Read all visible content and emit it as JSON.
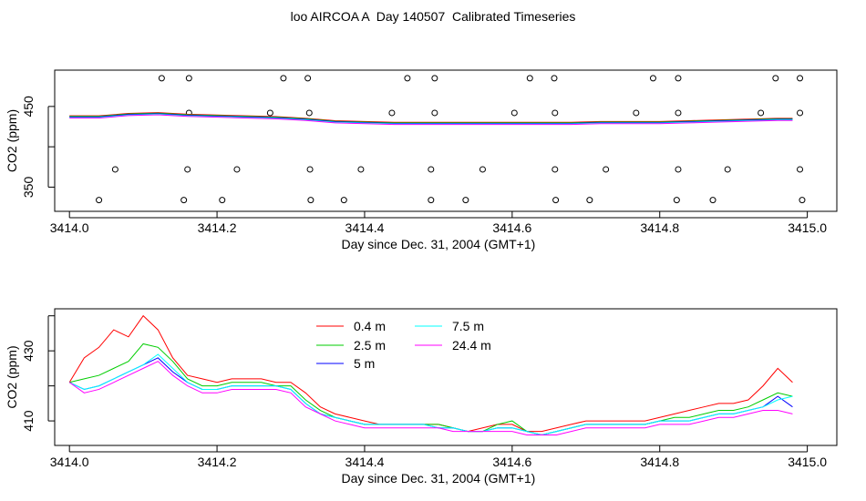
{
  "title": "loo AIRCOA A  Day 140507  Calibrated Timeseries",
  "chart_data": [
    {
      "type": "scatter",
      "xlabel": "Day since Dec. 31, 2004 (GMT+1)",
      "ylabel": "CO2 (ppm)",
      "xlim": [
        3413.98,
        3415.04
      ],
      "ylim": [
        320,
        495
      ],
      "xticks": [
        3414.0,
        3414.2,
        3414.4,
        3414.6,
        3414.8,
        3415.0
      ],
      "xtick_labels": [
        "3414.0",
        "3414.2",
        "3414.4",
        "3414.6",
        "3414.8",
        "3415.0"
      ],
      "yticks": [
        350,
        450
      ],
      "ytick_labels": [
        "350",
        "450"
      ],
      "point_series": [
        {
          "y": 485,
          "x": [
            3414.125,
            3414.162,
            3414.29,
            3414.323,
            3414.458,
            3414.495,
            3414.624,
            3414.657,
            3414.791,
            3414.825,
            3414.957,
            3414.99
          ]
        },
        {
          "y": 442,
          "x": [
            3414.162,
            3414.272,
            3414.325,
            3414.437,
            3414.495,
            3414.603,
            3414.658,
            3414.768,
            3414.825,
            3414.937,
            3414.99
          ]
        },
        {
          "y": 372,
          "x": [
            3414.062,
            3414.16,
            3414.227,
            3414.326,
            3414.395,
            3414.49,
            3414.56,
            3414.658,
            3414.727,
            3414.825,
            3414.892,
            3414.99
          ]
        },
        {
          "y": 334,
          "x": [
            3414.04,
            3414.155,
            3414.207,
            3414.327,
            3414.372,
            3414.49,
            3414.537,
            3414.659,
            3414.705,
            3414.823,
            3414.872,
            3414.993
          ]
        }
      ],
      "series_colors": [
        "#ff0000",
        "#00cd00",
        "#0000ff",
        "#00ffff",
        "#ff00ff"
      ],
      "line_x": [
        3414.0,
        3414.04,
        3414.08,
        3414.12,
        3414.16,
        3414.2,
        3414.24,
        3414.28,
        3414.32,
        3414.36,
        3414.4,
        3414.44,
        3414.48,
        3414.52,
        3414.56,
        3414.6,
        3414.64,
        3414.68,
        3414.72,
        3414.76,
        3414.8,
        3414.84,
        3414.88,
        3414.92,
        3414.96,
        3414.98
      ],
      "line_y": [
        437,
        437,
        440,
        441,
        439,
        438,
        437,
        436,
        434,
        431,
        430,
        429,
        429,
        429,
        429,
        429,
        429,
        429,
        430,
        430,
        430,
        431,
        432,
        433,
        434,
        434
      ]
    },
    {
      "type": "line",
      "xlabel": "Day since Dec. 31, 2004 (GMT+1)",
      "ylabel": "CO2 (ppm)",
      "xlim": [
        3413.98,
        3415.04
      ],
      "ylim": [
        403,
        442
      ],
      "xticks": [
        3414.0,
        3414.2,
        3414.4,
        3414.6,
        3414.8,
        3415.0
      ],
      "xtick_labels": [
        "3414.0",
        "3414.2",
        "3414.4",
        "3414.6",
        "3414.8",
        "3415.0"
      ],
      "yticks": [
        410,
        430
      ],
      "ytick_labels": [
        "410",
        "430"
      ],
      "x": [
        3414.0,
        3414.02,
        3414.04,
        3414.06,
        3414.08,
        3414.1,
        3414.12,
        3414.14,
        3414.16,
        3414.18,
        3414.2,
        3414.22,
        3414.24,
        3414.26,
        3414.28,
        3414.3,
        3414.32,
        3414.34,
        3414.36,
        3414.38,
        3414.4,
        3414.42,
        3414.44,
        3414.46,
        3414.48,
        3414.5,
        3414.52,
        3414.54,
        3414.56,
        3414.58,
        3414.6,
        3414.62,
        3414.64,
        3414.66,
        3414.68,
        3414.7,
        3414.72,
        3414.74,
        3414.76,
        3414.78,
        3414.8,
        3414.82,
        3414.84,
        3414.86,
        3414.88,
        3414.9,
        3414.92,
        3414.94,
        3414.96,
        3414.98
      ],
      "series": [
        {
          "name": "0.4 m",
          "values": [
            421,
            428,
            431,
            436,
            434,
            440,
            436,
            428,
            423,
            422,
            421,
            422,
            422,
            422,
            421,
            421,
            418,
            414,
            412,
            411,
            410,
            409,
            409,
            409,
            409,
            409,
            408,
            407,
            408,
            409,
            409,
            407,
            407,
            408,
            409,
            410,
            410,
            410,
            410,
            410,
            411,
            412,
            413,
            414,
            415,
            415,
            416,
            420,
            425,
            421
          ]
        },
        {
          "name": "2.5 m",
          "values": [
            421,
            422,
            423,
            425,
            427,
            432,
            431,
            427,
            422,
            420,
            420,
            421,
            421,
            421,
            420,
            420,
            416,
            413,
            411,
            410,
            409,
            409,
            409,
            409,
            409,
            409,
            408,
            407,
            407,
            409,
            410,
            407,
            406,
            407,
            408,
            409,
            409,
            409,
            409,
            409,
            410,
            411,
            411,
            412,
            413,
            413,
            414,
            416,
            418,
            417
          ]
        },
        {
          "name": "5 m",
          "values": [
            421,
            419,
            420,
            422,
            424,
            426,
            428,
            424,
            421,
            419,
            419,
            420,
            420,
            420,
            420,
            419,
            415,
            412,
            411,
            410,
            409,
            409,
            409,
            409,
            409,
            408,
            408,
            407,
            407,
            408,
            408,
            407,
            406,
            407,
            408,
            409,
            409,
            409,
            409,
            409,
            410,
            410,
            410,
            411,
            412,
            412,
            413,
            414,
            417,
            414
          ]
        },
        {
          "name": "7.5 m",
          "values": [
            421,
            419,
            420,
            422,
            424,
            426,
            429,
            425,
            421,
            419,
            419,
            420,
            420,
            420,
            420,
            419,
            415,
            412,
            411,
            410,
            409,
            409,
            409,
            409,
            409,
            408,
            408,
            407,
            407,
            408,
            408,
            407,
            406,
            407,
            408,
            409,
            409,
            409,
            409,
            409,
            410,
            410,
            410,
            411,
            412,
            412,
            413,
            414,
            416,
            417
          ]
        },
        {
          "name": "24.4 m",
          "values": [
            421,
            418,
            419,
            421,
            423,
            425,
            427,
            423,
            420,
            418,
            418,
            419,
            419,
            419,
            419,
            418,
            414,
            412,
            410,
            409,
            408,
            408,
            408,
            408,
            408,
            408,
            407,
            407,
            407,
            407,
            407,
            406,
            406,
            406,
            407,
            408,
            408,
            408,
            408,
            408,
            409,
            409,
            409,
            410,
            411,
            411,
            412,
            413,
            413,
            412
          ]
        }
      ]
    }
  ]
}
